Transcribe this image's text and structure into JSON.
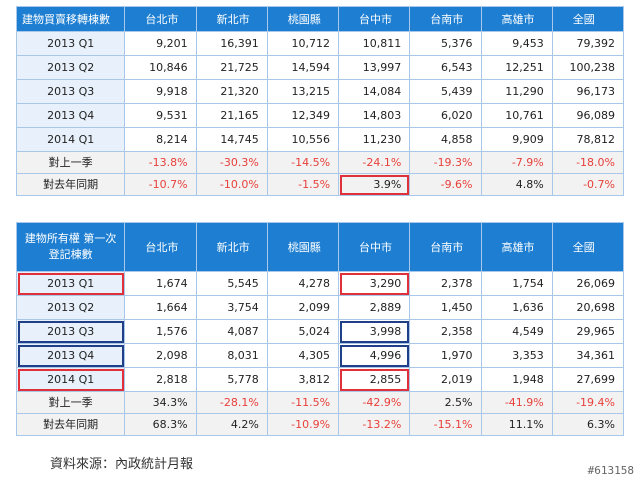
{
  "colors": {
    "header_bg": "#1e7fd2",
    "header_text": "#ffffff",
    "negative": "#e8403a",
    "highlight_red": "#e0313b",
    "highlight_blue": "#1f3f88"
  },
  "table1": {
    "header": [
      "建物買賣移轉棟數",
      "台北市",
      "新北市",
      "桃園縣",
      "台中市",
      "台南市",
      "高雄市",
      "全國"
    ],
    "rows": [
      {
        "label": "2013 Q1",
        "values": [
          "9,201",
          "16,391",
          "10,712",
          "10,811",
          "5,376",
          "9,453",
          "79,392"
        ]
      },
      {
        "label": "2013 Q2",
        "values": [
          "10,846",
          "21,725",
          "14,594",
          "13,997",
          "6,543",
          "12,251",
          "100,238"
        ]
      },
      {
        "label": "2013 Q3",
        "values": [
          "9,918",
          "21,320",
          "13,215",
          "14,084",
          "5,439",
          "11,290",
          "96,173"
        ]
      },
      {
        "label": "2013 Q4",
        "values": [
          "9,531",
          "21,165",
          "12,349",
          "14,803",
          "6,020",
          "10,761",
          "96,089"
        ]
      },
      {
        "label": "2014 Q1",
        "values": [
          "8,214",
          "14,745",
          "10,556",
          "11,230",
          "4,858",
          "9,909",
          "78,812"
        ]
      },
      {
        "label": "對上一季",
        "values": [
          "-13.8%",
          "-30.3%",
          "-14.5%",
          "-24.1%",
          "-19.3%",
          "-7.9%",
          "-18.0%"
        ]
      },
      {
        "label": "對去年同期",
        "values": [
          "-10.7%",
          "-10.0%",
          "-1.5%",
          "3.9%",
          "-9.6%",
          "4.8%",
          "-0.7%"
        ]
      }
    ]
  },
  "table2": {
    "header": [
      "建物所有權 第一次登記棟數",
      "台北市",
      "新北市",
      "桃園縣",
      "台中市",
      "台南市",
      "高雄市",
      "全國"
    ],
    "rows": [
      {
        "label": "2013 Q1",
        "values": [
          "1,674",
          "5,545",
          "4,278",
          "3,290",
          "2,378",
          "1,754",
          "26,069"
        ]
      },
      {
        "label": "2013 Q2",
        "values": [
          "1,664",
          "3,754",
          "2,099",
          "2,889",
          "1,450",
          "1,636",
          "20,698"
        ]
      },
      {
        "label": "2013 Q3",
        "values": [
          "1,576",
          "4,087",
          "5,024",
          "3,998",
          "2,358",
          "4,549",
          "29,965"
        ]
      },
      {
        "label": "2013 Q4",
        "values": [
          "2,098",
          "8,031",
          "4,305",
          "4,996",
          "1,970",
          "3,353",
          "34,361"
        ]
      },
      {
        "label": "2014 Q1",
        "values": [
          "2,818",
          "5,778",
          "3,812",
          "2,855",
          "2,019",
          "1,948",
          "27,699"
        ]
      },
      {
        "label": "對上一季",
        "values": [
          "34.3%",
          "-28.1%",
          "-11.5%",
          "-42.9%",
          "2.5%",
          "-41.9%",
          "-19.4%"
        ]
      },
      {
        "label": "對去年同期",
        "values": [
          "68.3%",
          "4.2%",
          "-10.9%",
          "-13.2%",
          "-15.1%",
          "11.1%",
          "6.3%"
        ]
      }
    ]
  },
  "source": "資料來源：內政統計月報",
  "watermark": "#613158"
}
